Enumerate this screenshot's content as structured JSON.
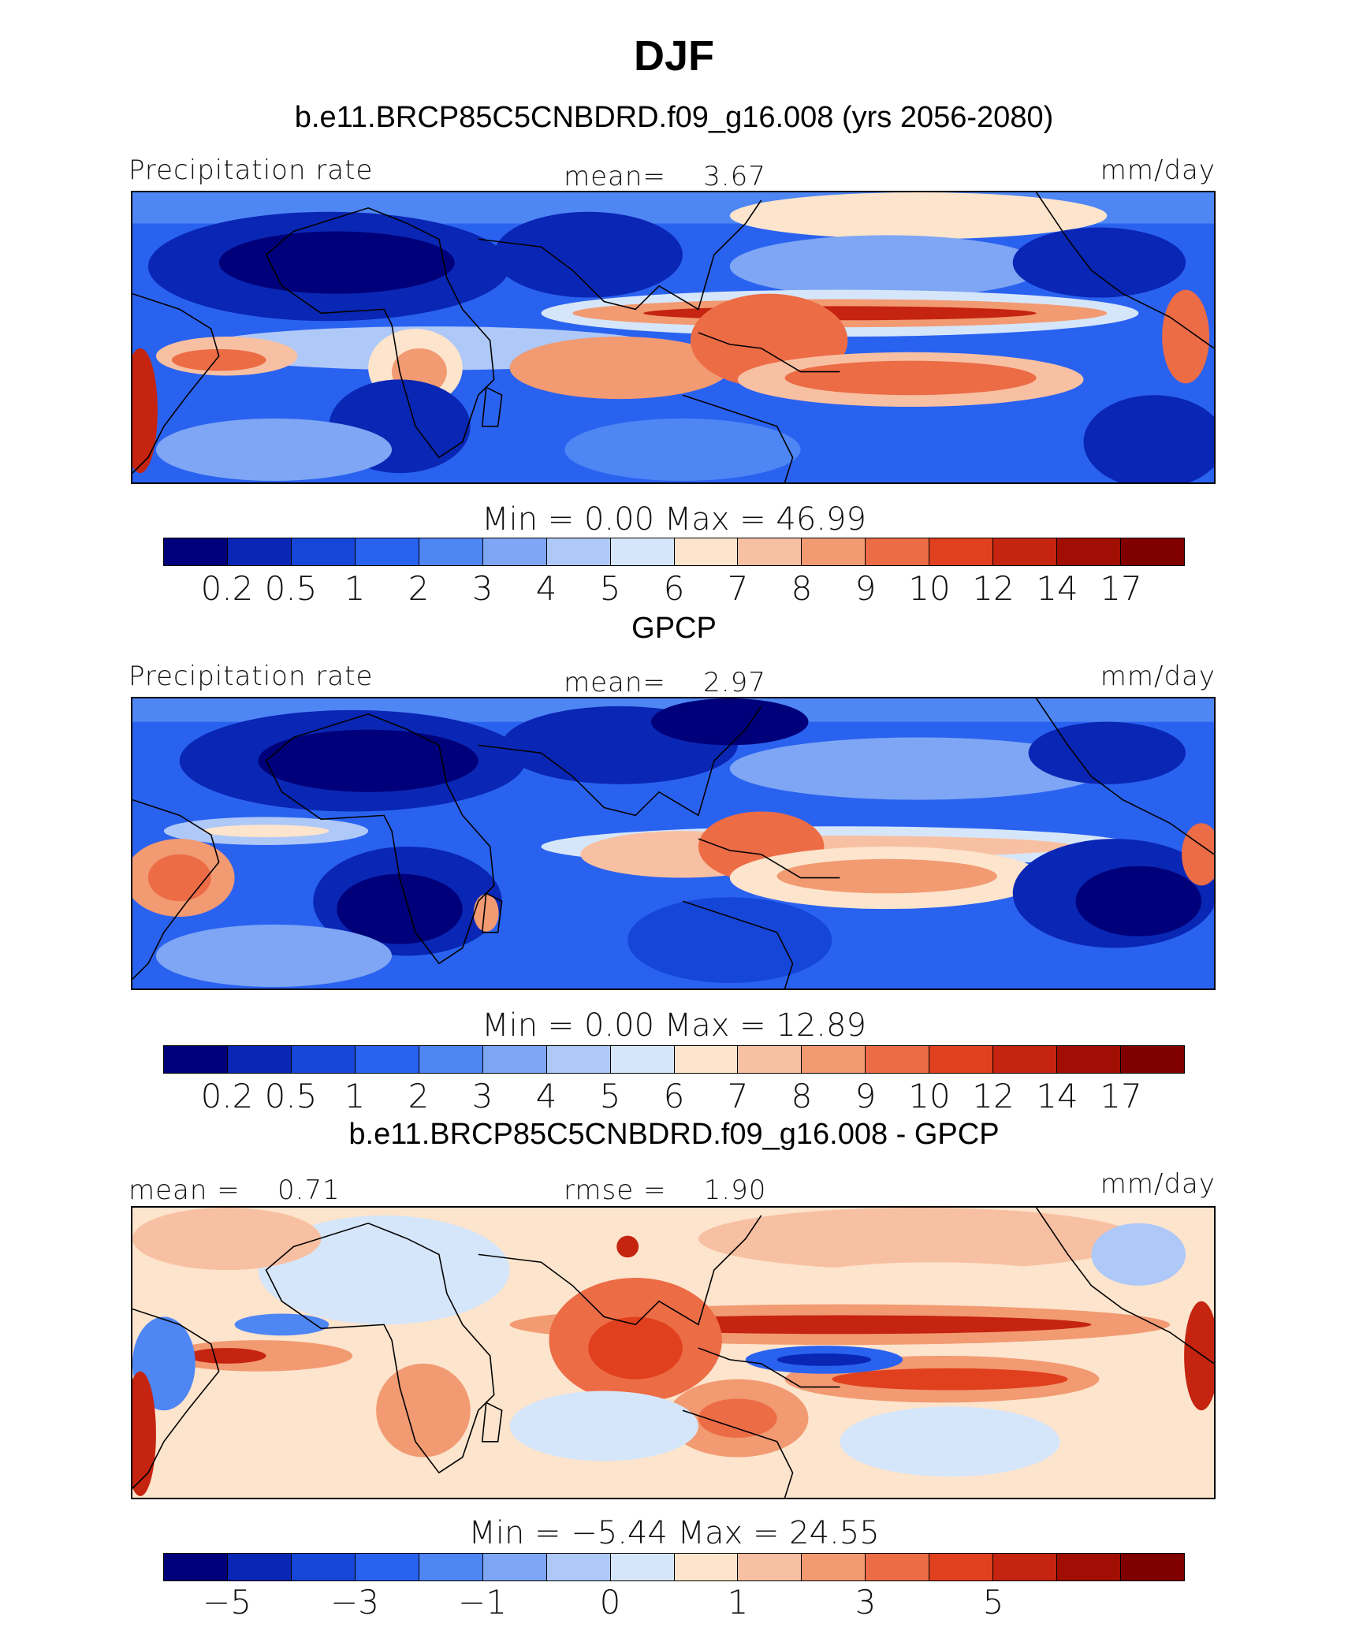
{
  "header": {
    "season": "DJF",
    "case_title": "b.e11.BRCP85C5CNBDRD.f09_g16.008 (yrs 2056-2080)"
  },
  "panels": [
    {
      "id": "model",
      "left_label": "Precipitation rate",
      "center_label": "mean=    3.67",
      "right_label": "mm/day",
      "min_max": "Min  =    0.00  Max  =   46.99",
      "colorbar_ticks": [
        "0.2",
        "0.5",
        "1",
        "2",
        "3",
        "4",
        "5",
        "6",
        "7",
        "8",
        "9",
        "10",
        "12",
        "14",
        "17"
      ]
    },
    {
      "id": "obs",
      "title": "GPCP",
      "left_label": "Precipitation rate",
      "center_label": "mean=    2.97",
      "right_label": "mm/day",
      "min_max": "Min  =    0.00  Max  =   12.89",
      "colorbar_ticks": [
        "0.2",
        "0.5",
        "1",
        "2",
        "3",
        "4",
        "5",
        "6",
        "7",
        "8",
        "9",
        "10",
        "12",
        "14",
        "17"
      ]
    },
    {
      "id": "diff",
      "title": "b.e11.BRCP85C5CNBDRD.f09_g16.008 - GPCP",
      "left_label": "mean =    0.71",
      "center_label": "rmse =    1.90",
      "right_label": "mm/day",
      "min_max": "Min  =   −5.44  Max  =   24.55",
      "colorbar_ticks": [
        "−5",
        "−3",
        "−1",
        "0",
        "1",
        "3",
        "5"
      ]
    }
  ],
  "colors": {
    "palette": [
      "#00007a",
      "#0a26b4",
      "#1646d8",
      "#2a62f0",
      "#4e86f4",
      "#7ea6f4",
      "#aec8f8",
      "#d6e6fa",
      "#fde4cc",
      "#f8c0a2",
      "#f29a72",
      "#ec6c46",
      "#e0401e",
      "#c42410",
      "#a00e04",
      "#800000"
    ],
    "coast": "#000000"
  }
}
